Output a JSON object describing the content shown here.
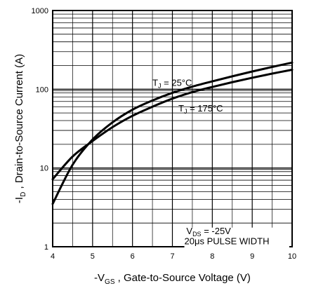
{
  "chart_data": {
    "type": "line",
    "xlabel": {
      "prefix": "-V",
      "sub": "GS",
      "suffix": " , Gate-to-Source Voltage (V)"
    },
    "ylabel": {
      "prefix": "-I",
      "sub": "D",
      "suffix": " , Drain-to-Source Current (A)"
    },
    "xlim": [
      4,
      10
    ],
    "ylim": [
      1,
      1000
    ],
    "yscale": "log",
    "grid": true,
    "x_ticks": [
      "4",
      "5",
      "6",
      "7",
      "8",
      "9",
      "10"
    ],
    "y_ticks": [
      "1",
      "10",
      "100",
      "1000"
    ],
    "series": [
      {
        "name": "TJ = 25°C",
        "label": {
          "main": "T",
          "sub": "J",
          "rest": " = 25°C"
        },
        "x": [
          4.0,
          4.5,
          5.0,
          5.5,
          6.0,
          6.5,
          7.0,
          7.5,
          8.0,
          8.5,
          9.0,
          9.5,
          10.0
        ],
        "y": [
          3.5,
          11,
          23,
          38,
          55,
          72,
          90,
          108,
          126,
          146,
          168,
          192,
          218
        ]
      },
      {
        "name": "TJ = 175°C",
        "label": {
          "main": "T",
          "sub": "J",
          "rest": " = 175°C"
        },
        "x": [
          4.0,
          4.5,
          5.0,
          5.5,
          6.0,
          6.5,
          7.0,
          7.5,
          8.0,
          8.5,
          9.0,
          9.5,
          10.0
        ],
        "y": [
          7.2,
          14,
          22,
          33,
          46,
          60,
          76,
          92,
          107,
          123,
          140,
          158,
          177
        ]
      }
    ],
    "annotations": {
      "vds": {
        "main": "V",
        "sub": "DS",
        "rest": " = -25V"
      },
      "pulse": "20μs PULSE WIDTH"
    }
  }
}
